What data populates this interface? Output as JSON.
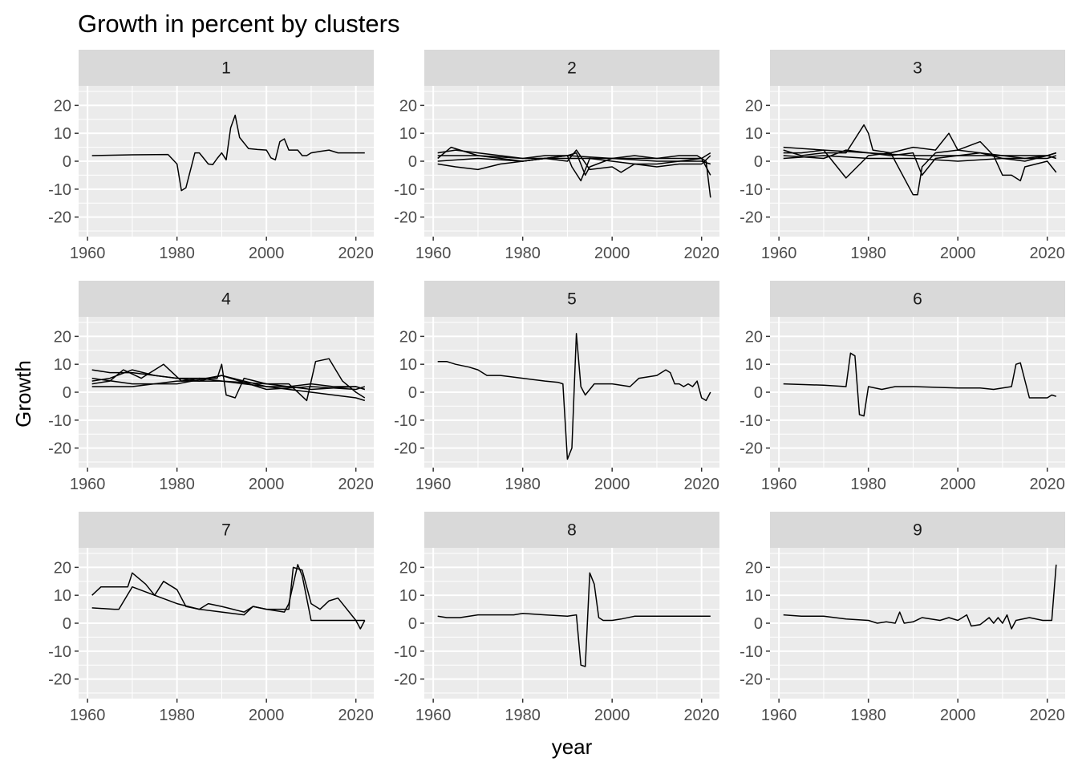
{
  "chart_data": {
    "type": "line",
    "title": "Growth in percent by clusters",
    "xlabel": "year",
    "ylabel": "Growth",
    "xlim": [
      1958,
      2024
    ],
    "ylim": [
      -27,
      27
    ],
    "x_ticks": [
      1960,
      1980,
      2000,
      2020
    ],
    "y_ticks": [
      -20,
      -10,
      0,
      10,
      20
    ],
    "grid": true,
    "layout": "facet 3x3, shared axes",
    "line_color": "#000000",
    "panel_background": "#ebebeb",
    "strip_background": "#d9d9d9",
    "panels": [
      {
        "strip": "1",
        "series": [
          {
            "x": [
              1961,
              1970,
              1978,
              1980,
              1981,
              1982,
              1984,
              1985,
              1986,
              1987,
              1988,
              1989,
              1990,
              1991,
              1992,
              1993,
              1994,
              1996,
              1998,
              2000,
              2001,
              2002,
              2003,
              2004,
              2005,
              2007,
              2008,
              2009,
              2010,
              2012,
              2014,
              2016,
              2018,
              2020,
              2022
            ],
            "y": [
              2,
              2.3,
              2.4,
              -1,
              -10.5,
              -9.5,
              3,
              3,
              1,
              -1,
              -1.2,
              1,
              3,
              0.5,
              12,
              16.5,
              8.5,
              4.5,
              4.2,
              4,
              1.2,
              0.5,
              7,
              8,
              4,
              4,
              2,
              2,
              3,
              3.5,
              4,
              3,
              3,
              3,
              3
            ]
          }
        ]
      },
      {
        "strip": "2",
        "series": [
          {
            "x": [
              1961,
              1965,
              1970,
              1975,
              1980,
              1985,
              1990,
              1992,
              1994,
              1995,
              2000,
              2005,
              2010,
              2015,
              2019,
              2020,
              2021,
              2022
            ],
            "y": [
              3,
              4,
              3,
              2,
              1,
              2,
              2,
              3,
              -5,
              -2,
              1,
              2,
              1,
              2,
              2,
              1,
              0,
              -13
            ]
          },
          {
            "x": [
              1961,
              1964,
              1966,
              1970,
              1975,
              1980,
              1985,
              1990,
              1991,
              1993,
              1995,
              2000,
              2005,
              2010,
              2015,
              2020,
              2022
            ],
            "y": [
              1,
              5,
              4,
              2,
              1,
              0,
              1,
              2,
              -2,
              -7,
              1,
              0,
              -1,
              -1,
              0,
              1,
              -5
            ]
          },
          {
            "x": [
              1961,
              1965,
              1970,
              1975,
              1980,
              1985,
              1990,
              1992,
              1995,
              2000,
              2002,
              2005,
              2010,
              2015,
              2020,
              2022
            ],
            "y": [
              -1,
              -2,
              -3,
              -1,
              0,
              1,
              0,
              4,
              -3,
              -2,
              -4,
              -1,
              -2,
              -1,
              -1,
              2
            ]
          },
          {
            "x": [
              1961,
              1970,
              1980,
              1990,
              2000,
              2010,
              2020,
              2022
            ],
            "y": [
              2,
              2,
              1,
              1,
              1,
              0,
              0,
              -1
            ]
          },
          {
            "x": [
              1961,
              1970,
              1980,
              1990,
              2000,
              2010,
              2020,
              2022
            ],
            "y": [
              0,
              1,
              0,
              2,
              1,
              1,
              1,
              3
            ]
          }
        ]
      },
      {
        "strip": "3",
        "series": [
          {
            "x": [
              1961,
              1965,
              1970,
              1975,
              1979,
              1980,
              1981,
              1985,
              1990,
              1991,
              1992,
              1995,
              2000,
              2005,
              2010,
              2015,
              2020,
              2022
            ],
            "y": [
              4,
              2,
              3,
              3,
              13,
              10,
              4,
              3,
              -12,
              -12,
              -2,
              3,
              4,
              3,
              2,
              1,
              2,
              3
            ]
          },
          {
            "x": [
              1961,
              1965,
              1970,
              1975,
              1980,
              1985,
              1990,
              1995,
              1998,
              2000,
              2005,
              2008,
              2010,
              2012,
              2014,
              2015,
              2020,
              2022
            ],
            "y": [
              3,
              3,
              4,
              -6,
              2,
              3,
              5,
              4,
              10,
              4,
              7,
              2,
              -5,
              -5,
              -7,
              -2,
              0,
              -4
            ]
          },
          {
            "x": [
              1961,
              1970,
              1975,
              1980,
              1985,
              1990,
              1992,
              1995,
              2000,
              2005,
              2010,
              2015,
              2020,
              2022
            ],
            "y": [
              2,
              1,
              4,
              3,
              2,
              3,
              -5,
              1,
              2,
              3,
              1,
              0,
              2,
              1
            ]
          },
          {
            "x": [
              1961,
              1970,
              1980,
              1990,
              2000,
              2010,
              2020,
              2022
            ],
            "y": [
              5,
              4,
              3,
              2,
              2,
              2,
              2,
              3
            ]
          },
          {
            "x": [
              1961,
              1970,
              1980,
              1990,
              2000,
              2010,
              2020,
              2022
            ],
            "y": [
              1,
              2,
              1,
              1,
              0,
              1,
              1,
              2
            ]
          }
        ]
      },
      {
        "strip": "4",
        "series": [
          {
            "x": [
              1961,
              1965,
              1970,
              1975,
              1980,
              1985,
              1990,
              1995,
              2000,
              2005,
              2010,
              2015,
              2020,
              2022
            ],
            "y": [
              8,
              7,
              7,
              6,
              5,
              5,
              4,
              3,
              2,
              1,
              0,
              -1,
              -2,
              -3
            ]
          },
          {
            "x": [
              1961,
              1965,
              1968,
              1972,
              1977,
              1981,
              1985,
              1989,
              1990,
              1991,
              1993,
              1995,
              2000,
              2005,
              2009,
              2011,
              2014,
              2017,
              2020,
              2022
            ],
            "y": [
              3,
              4,
              8,
              5,
              10,
              4,
              5,
              5,
              10,
              -1,
              -2,
              5,
              3,
              3,
              -3,
              11,
              12,
              4,
              0,
              -2
            ]
          },
          {
            "x": [
              1961,
              1965,
              1970,
              1975,
              1980,
              1985,
              1990,
              1995,
              2000,
              2005,
              2010,
              2015,
              2020,
              2022
            ],
            "y": [
              4,
              5,
              8,
              6,
              5,
              4,
              6,
              4,
              2,
              2,
              3,
              2,
              2,
              1
            ]
          },
          {
            "x": [
              1961,
              1970,
              1980,
              1990,
              2000,
              2010,
              2020,
              2022
            ],
            "y": [
              2,
              2,
              4,
              4,
              3,
              1,
              2,
              1
            ]
          },
          {
            "x": [
              1961,
              1970,
              1980,
              1990,
              2000,
              2010,
              2020,
              2022
            ],
            "y": [
              5,
              3,
              3,
              6,
              1,
              2,
              1,
              2
            ]
          }
        ]
      },
      {
        "strip": "5",
        "series": [
          {
            "x": [
              1961,
              1963,
              1965,
              1968,
              1970,
              1972,
              1975,
              1980,
              1985,
              1988,
              1989,
              1990,
              1991,
              1992,
              1993,
              1994,
              1996,
              2000,
              2004,
              2006,
              2010,
              2012,
              2013,
              2014,
              2015,
              2016,
              2017,
              2018,
              2019,
              2020,
              2021,
              2022
            ],
            "y": [
              11,
              11,
              10,
              9,
              8,
              6,
              6,
              5,
              4,
              3.5,
              3,
              -24,
              -20,
              21,
              2,
              -1,
              3,
              3,
              2,
              5,
              6,
              8,
              7,
              3,
              3,
              2,
              3,
              2,
              4,
              -2,
              -3,
              0
            ]
          }
        ]
      },
      {
        "strip": "6",
        "series": [
          {
            "x": [
              1961,
              1970,
              1975,
              1976,
              1977,
              1978,
              1979,
              1980,
              1983,
              1986,
              1990,
              2000,
              2005,
              2008,
              2010,
              2012,
              2013,
              2014,
              2016,
              2019,
              2020,
              2021,
              2022
            ],
            "y": [
              3,
              2.5,
              2,
              14,
              13,
              -8,
              -8.5,
              2,
              1,
              2,
              2,
              1.5,
              1.5,
              1,
              1.5,
              2,
              10,
              10.5,
              -2,
              -2,
              -2,
              -1,
              -1.5
            ]
          }
        ]
      },
      {
        "strip": "7",
        "series": [
          {
            "x": [
              1961,
              1963,
              1969,
              1970,
              1973,
              1975,
              1977,
              1980,
              1982,
              1985,
              1987,
              1990,
              1995,
              1997,
              2000,
              2005,
              2006,
              2008,
              2010,
              2012,
              2014,
              2016,
              2020,
              2021,
              2022
            ],
            "y": [
              10,
              13,
              13,
              18,
              14,
              10,
              15,
              12,
              6,
              5,
              7,
              6,
              4,
              6,
              5,
              5,
              20,
              19,
              7,
              5,
              8,
              9,
              1,
              -2,
              1
            ]
          },
          {
            "x": [
              1961,
              1966,
              1967,
              1970,
              1975,
              1980,
              1985,
              1990,
              1995,
              1997,
              2000,
              2004,
              2005,
              2007,
              2008,
              2010,
              2012,
              2015,
              2020,
              2022
            ],
            "y": [
              5.5,
              5,
              5,
              13,
              10,
              7,
              5,
              4,
              3,
              6,
              5,
              4,
              7,
              21,
              17,
              1,
              1,
              1,
              1,
              1
            ]
          }
        ]
      },
      {
        "strip": "8",
        "series": [
          {
            "x": [
              1961,
              1963,
              1966,
              1970,
              1975,
              1978,
              1980,
              1985,
              1990,
              1992,
              1993,
              1994,
              1995,
              1996,
              1997,
              1998,
              2000,
              2002,
              2005,
              2010,
              2015,
              2020,
              2022
            ],
            "y": [
              2.5,
              2,
              2,
              3,
              3,
              3,
              3.5,
              3,
              2.5,
              3,
              -15,
              -15.5,
              18,
              14,
              2,
              1,
              1,
              1.5,
              2.5,
              2.5,
              2.5,
              2.5,
              2.5
            ]
          }
        ]
      },
      {
        "strip": "9",
        "series": [
          {
            "x": [
              1961,
              1965,
              1970,
              1975,
              1980,
              1982,
              1984,
              1986,
              1987,
              1988,
              1990,
              1992,
              1994,
              1996,
              1998,
              2000,
              2002,
              2003,
              2005,
              2007,
              2008,
              2009,
              2010,
              2011,
              2012,
              2013,
              2016,
              2019,
              2020,
              2021,
              2022
            ],
            "y": [
              3,
              2.5,
              2.5,
              1.5,
              1,
              0,
              0.5,
              0,
              4,
              0,
              0.5,
              2,
              1.5,
              1,
              2,
              1,
              3,
              -1,
              -0.5,
              2,
              0,
              2,
              0,
              3,
              -2,
              1,
              2,
              1,
              1,
              1,
              21
            ]
          }
        ]
      }
    ]
  }
}
